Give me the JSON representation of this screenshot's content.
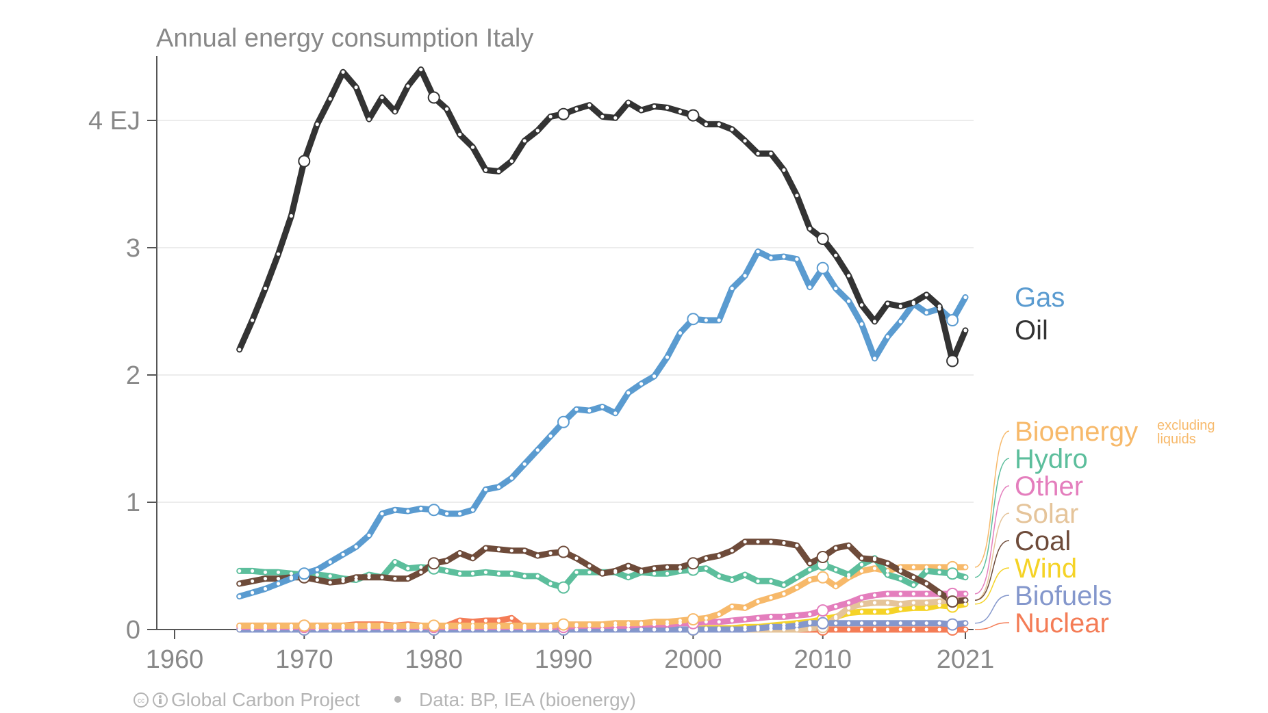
{
  "chart_data": {
    "type": "line",
    "title": "Annual energy consumption Italy",
    "xlabel": "",
    "ylabel": "",
    "xlim": [
      1960,
      2021
    ],
    "ylim": [
      0,
      4.5
    ],
    "x_ticks": [
      1960,
      1970,
      1980,
      1990,
      2000,
      2010,
      2021
    ],
    "y_ticks": [
      {
        "value": 0,
        "label": "0"
      },
      {
        "value": 1,
        "label": "1"
      },
      {
        "value": 2,
        "label": "2"
      },
      {
        "value": 3,
        "label": "3"
      },
      {
        "value": 4,
        "label": "4 EJ"
      }
    ],
    "grid": "horizontal",
    "legend_placement": "right",
    "label_note": "excluding liquids",
    "footer": {
      "credit": "Global Carbon Project",
      "source": "Data: BP, IEA (bioenergy)"
    },
    "series": [
      {
        "name": "Oil",
        "color": "#333333",
        "start": 1965,
        "values": [
          2.2,
          2.43,
          2.68,
          2.95,
          3.25,
          3.68,
          3.97,
          4.17,
          4.38,
          4.26,
          4.01,
          4.18,
          4.07,
          4.27,
          4.4,
          4.18,
          4.09,
          3.89,
          3.79,
          3.61,
          3.6,
          3.68,
          3.84,
          3.92,
          4.03,
          4.05,
          4.09,
          4.12,
          4.03,
          4.02,
          4.14,
          4.08,
          4.11,
          4.1,
          4.07,
          4.04,
          3.97,
          3.97,
          3.93,
          3.84,
          3.74,
          3.74,
          3.61,
          3.41,
          3.15,
          3.07,
          2.94,
          2.78,
          2.55,
          2.42,
          2.56,
          2.54,
          2.57,
          2.63,
          2.54,
          2.11,
          2.35
        ]
      },
      {
        "name": "Gas",
        "color": "#5a9bd0",
        "start": 1965,
        "values": [
          0.26,
          0.29,
          0.32,
          0.36,
          0.4,
          0.44,
          0.47,
          0.53,
          0.59,
          0.65,
          0.74,
          0.91,
          0.94,
          0.93,
          0.95,
          0.94,
          0.91,
          0.91,
          0.94,
          1.1,
          1.12,
          1.19,
          1.3,
          1.41,
          1.52,
          1.63,
          1.73,
          1.72,
          1.75,
          1.7,
          1.86,
          1.93,
          1.99,
          2.14,
          2.33,
          2.44,
          2.43,
          2.43,
          2.68,
          2.78,
          2.97,
          2.92,
          2.93,
          2.91,
          2.69,
          2.84,
          2.68,
          2.58,
          2.4,
          2.13,
          2.3,
          2.42,
          2.56,
          2.49,
          2.52,
          2.43,
          2.61
        ]
      },
      {
        "name": "Coal",
        "color": "#6e4b3a",
        "start": 1965,
        "values": [
          0.36,
          0.38,
          0.4,
          0.4,
          0.41,
          0.41,
          0.39,
          0.37,
          0.38,
          0.41,
          0.41,
          0.41,
          0.4,
          0.4,
          0.45,
          0.52,
          0.54,
          0.6,
          0.56,
          0.64,
          0.63,
          0.62,
          0.62,
          0.58,
          0.6,
          0.61,
          0.56,
          0.5,
          0.44,
          0.46,
          0.5,
          0.46,
          0.48,
          0.49,
          0.49,
          0.52,
          0.56,
          0.58,
          0.62,
          0.69,
          0.69,
          0.69,
          0.68,
          0.66,
          0.52,
          0.57,
          0.64,
          0.66,
          0.56,
          0.55,
          0.52,
          0.46,
          0.41,
          0.36,
          0.29,
          0.22,
          0.23
        ]
      },
      {
        "name": "Hydro",
        "color": "#5cbe9c",
        "start": 1965,
        "values": [
          0.46,
          0.46,
          0.45,
          0.45,
          0.44,
          0.43,
          0.43,
          0.42,
          0.4,
          0.39,
          0.43,
          0.41,
          0.53,
          0.48,
          0.49,
          0.48,
          0.46,
          0.44,
          0.44,
          0.45,
          0.44,
          0.44,
          0.42,
          0.42,
          0.36,
          0.33,
          0.45,
          0.45,
          0.45,
          0.45,
          0.41,
          0.45,
          0.44,
          0.44,
          0.46,
          0.47,
          0.48,
          0.42,
          0.39,
          0.43,
          0.38,
          0.38,
          0.35,
          0.41,
          0.47,
          0.51,
          0.47,
          0.43,
          0.51,
          0.56,
          0.43,
          0.4,
          0.35,
          0.46,
          0.45,
          0.44,
          0.41
        ]
      },
      {
        "name": "Bioenergy",
        "color": "#f7b96a",
        "start": 1965,
        "values": [
          0.03,
          0.03,
          0.03,
          0.03,
          0.03,
          0.03,
          0.03,
          0.03,
          0.03,
          0.03,
          0.03,
          0.03,
          0.03,
          0.03,
          0.03,
          0.03,
          0.03,
          0.03,
          0.03,
          0.03,
          0.03,
          0.03,
          0.03,
          0.03,
          0.03,
          0.04,
          0.04,
          0.04,
          0.04,
          0.05,
          0.05,
          0.05,
          0.06,
          0.06,
          0.07,
          0.08,
          0.09,
          0.12,
          0.18,
          0.17,
          0.22,
          0.25,
          0.28,
          0.33,
          0.39,
          0.41,
          0.34,
          0.41,
          0.46,
          0.48,
          0.46,
          0.49,
          0.49,
          0.49,
          0.49,
          0.49,
          0.49
        ]
      },
      {
        "name": "Other",
        "color": "#e47ebd",
        "start": 1965,
        "values": [
          0.02,
          0.02,
          0.02,
          0.02,
          0.02,
          0.02,
          0.02,
          0.02,
          0.02,
          0.02,
          0.02,
          0.02,
          0.02,
          0.02,
          0.02,
          0.02,
          0.02,
          0.02,
          0.02,
          0.02,
          0.02,
          0.02,
          0.02,
          0.02,
          0.02,
          0.02,
          0.03,
          0.03,
          0.03,
          0.03,
          0.03,
          0.04,
          0.04,
          0.04,
          0.05,
          0.05,
          0.06,
          0.06,
          0.07,
          0.08,
          0.09,
          0.1,
          0.1,
          0.11,
          0.12,
          0.15,
          0.18,
          0.21,
          0.25,
          0.27,
          0.28,
          0.28,
          0.28,
          0.28,
          0.28,
          0.28,
          0.28
        ]
      },
      {
        "name": "Solar",
        "color": "#e5c49a",
        "start": 1965,
        "values": [
          0,
          0,
          0,
          0,
          0,
          0,
          0,
          0,
          0,
          0,
          0,
          0,
          0,
          0,
          0,
          0,
          0,
          0,
          0,
          0,
          0,
          0,
          0,
          0,
          0,
          0,
          0,
          0,
          0,
          0,
          0,
          0,
          0,
          0,
          0,
          0,
          0,
          0,
          0,
          0,
          0,
          0,
          0,
          0,
          0.01,
          0.02,
          0.09,
          0.17,
          0.2,
          0.21,
          0.21,
          0.2,
          0.21,
          0.21,
          0.22,
          0.23,
          0.23
        ]
      },
      {
        "name": "Wind",
        "color": "#f5d327",
        "start": 1965,
        "values": [
          0,
          0,
          0,
          0,
          0,
          0,
          0,
          0,
          0,
          0,
          0,
          0,
          0,
          0,
          0,
          0,
          0,
          0,
          0,
          0,
          0,
          0,
          0,
          0,
          0,
          0,
          0,
          0,
          0,
          0,
          0,
          0,
          0,
          0,
          0,
          0,
          0.01,
          0.01,
          0.01,
          0.02,
          0.02,
          0.03,
          0.04,
          0.05,
          0.06,
          0.08,
          0.1,
          0.13,
          0.14,
          0.14,
          0.14,
          0.16,
          0.17,
          0.17,
          0.19,
          0.18,
          0.2
        ]
      },
      {
        "name": "Biofuels",
        "color": "#8497cc",
        "start": 1965,
        "values": [
          0,
          0,
          0,
          0,
          0,
          0,
          0,
          0,
          0,
          0,
          0,
          0,
          0,
          0,
          0,
          0,
          0,
          0,
          0,
          0,
          0,
          0,
          0,
          0,
          0,
          0,
          0,
          0,
          0,
          0,
          0,
          0,
          0,
          0,
          0,
          0,
          0,
          0,
          0,
          0,
          0.01,
          0.02,
          0.02,
          0.03,
          0.05,
          0.05,
          0.05,
          0.05,
          0.05,
          0.05,
          0.05,
          0.05,
          0.05,
          0.05,
          0.05,
          0.04,
          0.05
        ]
      },
      {
        "name": "Nuclear",
        "color": "#f47c56",
        "start": 1965,
        "values": [
          0.03,
          0.03,
          0.03,
          0.03,
          0.03,
          0.03,
          0.03,
          0.03,
          0.03,
          0.04,
          0.04,
          0.04,
          0.03,
          0.04,
          0.03,
          0.02,
          0.03,
          0.07,
          0.06,
          0.07,
          0.07,
          0.09,
          0.01,
          0,
          0,
          0,
          0,
          0,
          0,
          0,
          0,
          0,
          0,
          0,
          0,
          0,
          0,
          0,
          0,
          0,
          0,
          0,
          0,
          0,
          0,
          0,
          0,
          0,
          0,
          0,
          0,
          0,
          0,
          0,
          0,
          0,
          0
        ]
      }
    ],
    "right_labels": [
      "Gas",
      "Oil",
      "Bioenergy",
      "Hydro",
      "Other",
      "Solar",
      "Coal",
      "Wind",
      "Biofuels",
      "Nuclear"
    ]
  }
}
